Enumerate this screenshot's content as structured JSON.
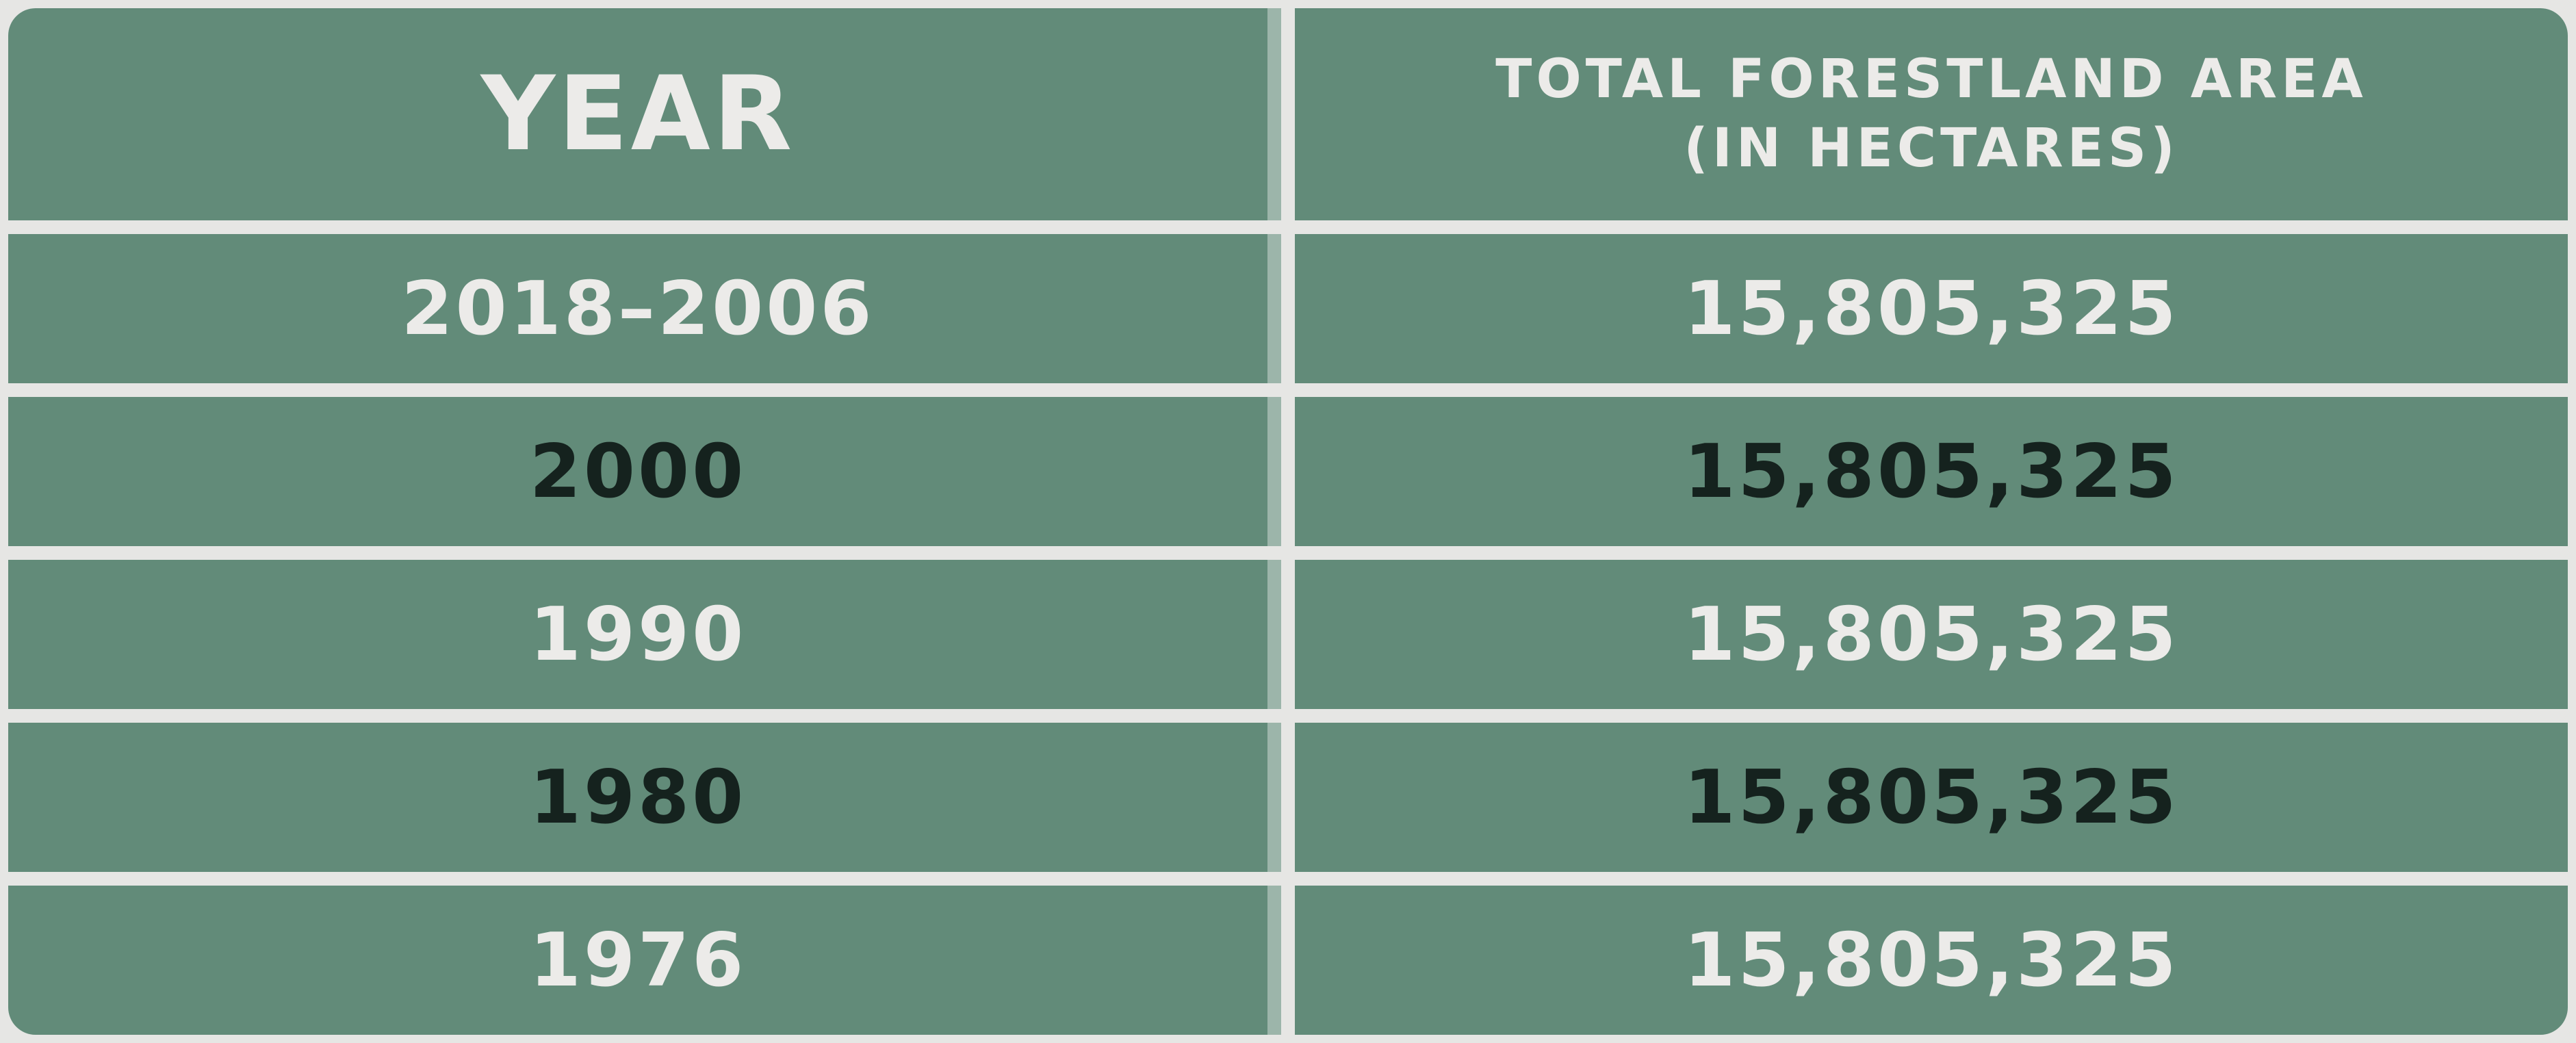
{
  "colors": {
    "cell_background": "#628b79",
    "grid_lines": "#e6e6e4",
    "column_divider": "#9cb5aa",
    "light_text": "#ecebe9",
    "dark_text": "#15221e"
  },
  "chart_data": {
    "type": "table",
    "columns": [
      "YEAR",
      "TOTAL FORESTLAND AREA (IN HECTARES)"
    ],
    "header_lines": [
      "TOTAL FORESTLAND AREA",
      "(IN HECTARES)"
    ],
    "rows": [
      {
        "year": "2018–2006",
        "area": "15,805,325",
        "text_color": "#ecebe9"
      },
      {
        "year": "2000",
        "area": "15,805,325",
        "text_color": "#15221e"
      },
      {
        "year": "1990",
        "area": "15,805,325",
        "text_color": "#ecebe9"
      },
      {
        "year": "1980",
        "area": "15,805,325",
        "text_color": "#15221e"
      },
      {
        "year": "1976",
        "area": "15,805,325",
        "text_color": "#ecebe9"
      }
    ]
  }
}
